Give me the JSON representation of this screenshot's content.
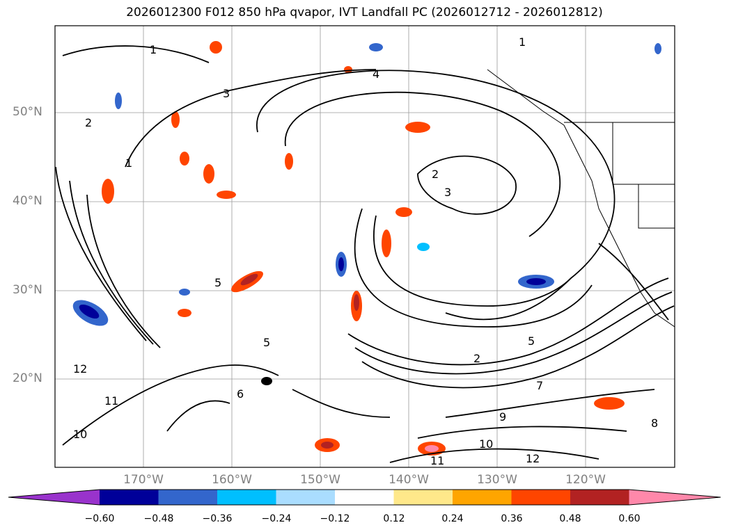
{
  "title": "2026012300 F012 850 hPa qvapor, IVT Landfall PC (2026012712 - 2026012812)",
  "lat_labels": [
    "50°N",
    "40°N",
    "30°N",
    "20°N"
  ],
  "lon_labels": [
    "170°W",
    "160°W",
    "150°W",
    "140°W",
    "130°W",
    "120°W"
  ],
  "colorbar": {
    "ticks": [
      "−0.60",
      "−0.48",
      "−0.36",
      "−0.24",
      "−0.12",
      "0.12",
      "0.24",
      "0.36",
      "0.48",
      "0.60"
    ],
    "colors": [
      "#9933cc",
      "#000099",
      "#3366cc",
      "#00bfff",
      "#aaddff",
      "#ffffff",
      "#ffe88a",
      "#ffa500",
      "#ff4500",
      "#b22222",
      "#ff88aa"
    ]
  },
  "contour_labels": [
    "1",
    "2",
    "3",
    "4",
    "5",
    "6",
    "7",
    "8",
    "9",
    "10",
    "11",
    "12"
  ],
  "map": {
    "projection": "PlateCarree",
    "lon_range": [
      -180,
      -110
    ],
    "lat_range": [
      10,
      60
    ],
    "gridlines": true,
    "coastlines": true
  }
}
